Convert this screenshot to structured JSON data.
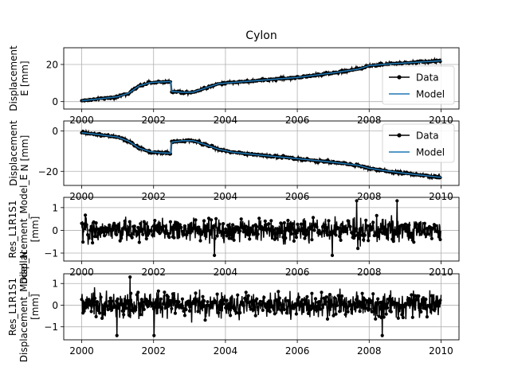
{
  "figure_title": "Cylon",
  "chart_data": [
    {
      "type": "line",
      "ylabel_lines": [
        "Displacement",
        "E [mm]"
      ],
      "xlim": [
        1999.5,
        2010.5
      ],
      "ylim": [
        -4,
        29
      ],
      "xticks": [
        2000,
        2002,
        2004,
        2006,
        2008,
        2010
      ],
      "yticks": [
        0,
        20
      ],
      "grid": true,
      "legend": "lower right",
      "series": [
        {
          "name": "Data",
          "color": "#000000",
          "marker": "point",
          "noise": 0.7
        },
        {
          "name": "Model",
          "color": "#1f77b4",
          "x": [
            2000.0,
            2000.5,
            2001.0,
            2001.3,
            2001.6,
            2001.9,
            2002.2,
            2002.48,
            2002.5,
            2002.8,
            2003.1,
            2003.4,
            2003.8,
            2004.2,
            2005.0,
            2006.0,
            2007.0,
            2007.7,
            2008.0,
            2008.5,
            2009.0,
            2009.5,
            2010.0
          ],
          "y": [
            0.5,
            1.5,
            2.6,
            4.5,
            8.5,
            10.2,
            10.6,
            10.8,
            5.5,
            5.0,
            5.1,
            7.0,
            9.6,
            10.3,
            11.5,
            13.0,
            15.5,
            17.5,
            19.4,
            20.2,
            20.8,
            21.4,
            22.0
          ]
        }
      ]
    },
    {
      "type": "line",
      "ylabel_lines": [
        "Displacement",
        "N [mm]"
      ],
      "xlim": [
        1999.5,
        2010.5
      ],
      "ylim": [
        -27,
        5
      ],
      "xticks": [
        2000,
        2002,
        2004,
        2006,
        2008,
        2010
      ],
      "yticks": [
        0,
        -20
      ],
      "grid": true,
      "legend": "upper right",
      "series": [
        {
          "name": "Data",
          "color": "#000000",
          "marker": "point",
          "noise": 0.7
        },
        {
          "name": "Model",
          "color": "#1f77b4",
          "x": [
            2000.0,
            2000.5,
            2001.0,
            2001.3,
            2001.6,
            2001.9,
            2002.2,
            2002.48,
            2002.5,
            2002.8,
            2003.1,
            2003.4,
            2003.8,
            2004.2,
            2005.0,
            2006.0,
            2007.0,
            2007.7,
            2008.0,
            2008.5,
            2009.0,
            2009.5,
            2010.0
          ],
          "y": [
            -0.8,
            -1.8,
            -3.0,
            -5.0,
            -8.5,
            -10.2,
            -10.8,
            -11.0,
            -5.5,
            -4.8,
            -4.8,
            -6.5,
            -9.0,
            -10.5,
            -12.0,
            -13.7,
            -15.5,
            -17.0,
            -18.5,
            -19.8,
            -21.0,
            -22.0,
            -23.0
          ]
        }
      ]
    },
    {
      "type": "scatter",
      "ylabel_lines": [
        "Res_L1R1S1",
        "Displacement_Model_E",
        "[mm]"
      ],
      "xlim": [
        1999.5,
        2010.5
      ],
      "ylim": [
        -1.35,
        1.45
      ],
      "xticks": [
        2000,
        2002,
        2004,
        2006,
        2008,
        2010
      ],
      "yticks": [
        1,
        0,
        -1
      ],
      "grid": true,
      "series": [
        {
          "name": "",
          "color": "#000000",
          "marker": "point",
          "amplitude": 0.36,
          "max": 1.3,
          "min": -1.1
        }
      ]
    },
    {
      "type": "scatter",
      "ylabel_lines": [
        "Res_L1R1S1",
        "Displacement_Model_N",
        "[mm]"
      ],
      "xlim": [
        1999.5,
        2010.5
      ],
      "ylim": [
        -1.6,
        1.45
      ],
      "xticks": [
        2000,
        2002,
        2004,
        2006,
        2008,
        2010
      ],
      "yticks": [
        1,
        0,
        -1
      ],
      "grid": true,
      "series": [
        {
          "name": "",
          "color": "#000000",
          "marker": "point",
          "amplitude": 0.4,
          "max": 1.3,
          "min": -1.4
        }
      ]
    }
  ]
}
